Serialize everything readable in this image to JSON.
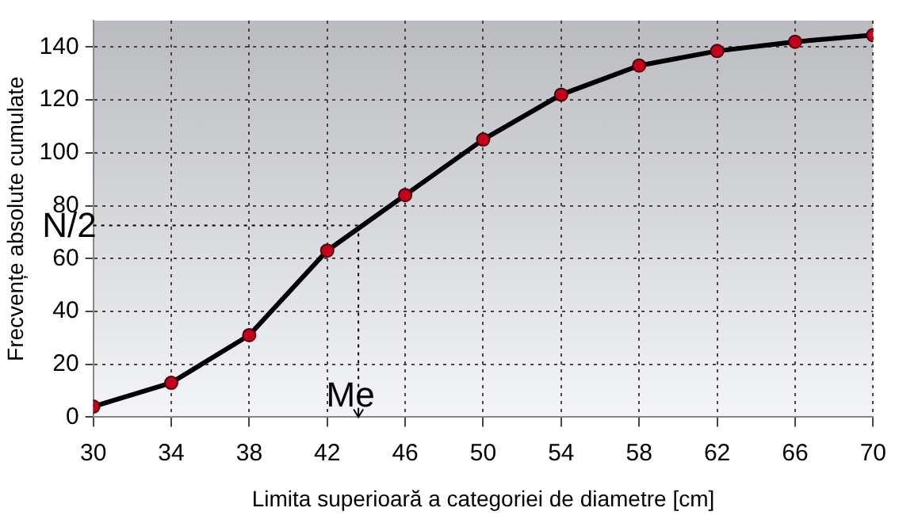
{
  "chart_data": {
    "type": "line",
    "xlabel": "Limita superioară a categoriei de diametre [cm]",
    "ylabel": "Frecvențe absolute cumulate",
    "x": [
      30,
      34,
      38,
      42,
      46,
      50,
      54,
      58,
      62,
      66,
      70
    ],
    "series": [
      {
        "color": "#000000",
        "values": [
          4,
          13,
          31,
          63,
          84,
          105,
          122,
          133,
          138.5,
          142,
          144.5
        ]
      }
    ],
    "xlim": [
      30,
      70
    ],
    "xticks": [
      30,
      34,
      38,
      42,
      46,
      50,
      54,
      58,
      62,
      66,
      70
    ],
    "ylim": [
      0,
      150
    ],
    "yticks": [
      0,
      20,
      40,
      60,
      80,
      100,
      120,
      140
    ],
    "grid": true,
    "marker": "circle",
    "line_style": "solid",
    "legend": false,
    "ref_lines": [
      {
        "axis": "y",
        "value": 72.5,
        "label": "N/2",
        "line_style": "dotted"
      },
      {
        "axis": "x",
        "value": 43.6,
        "label": "Me",
        "line_style": "dotted"
      }
    ]
  }
}
